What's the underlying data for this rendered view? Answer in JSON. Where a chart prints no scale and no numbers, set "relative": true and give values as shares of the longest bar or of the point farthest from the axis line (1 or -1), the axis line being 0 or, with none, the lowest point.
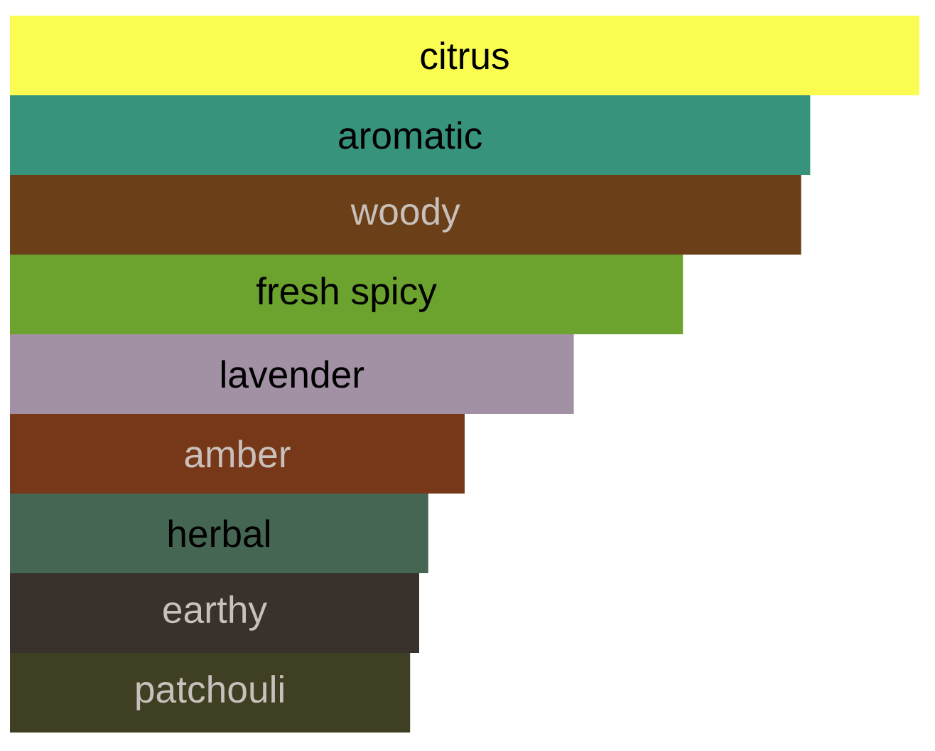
{
  "chart_data": {
    "type": "bar",
    "orientation": "horizontal",
    "relative": true,
    "categories": [
      "citrus",
      "aromatic",
      "woody",
      "fresh spicy",
      "lavender",
      "amber",
      "herbal",
      "earthy",
      "patchouli"
    ],
    "values": [
      1,
      0.88,
      0.87,
      0.74,
      0.62,
      0.5,
      0.46,
      0.45,
      0.44
    ],
    "colors": [
      "#fafc52",
      "#38937d",
      "#6b3f18",
      "#6ca22e",
      "#a290a4",
      "#773719",
      "#466654",
      "#39312b",
      "#3f3f24"
    ]
  }
}
